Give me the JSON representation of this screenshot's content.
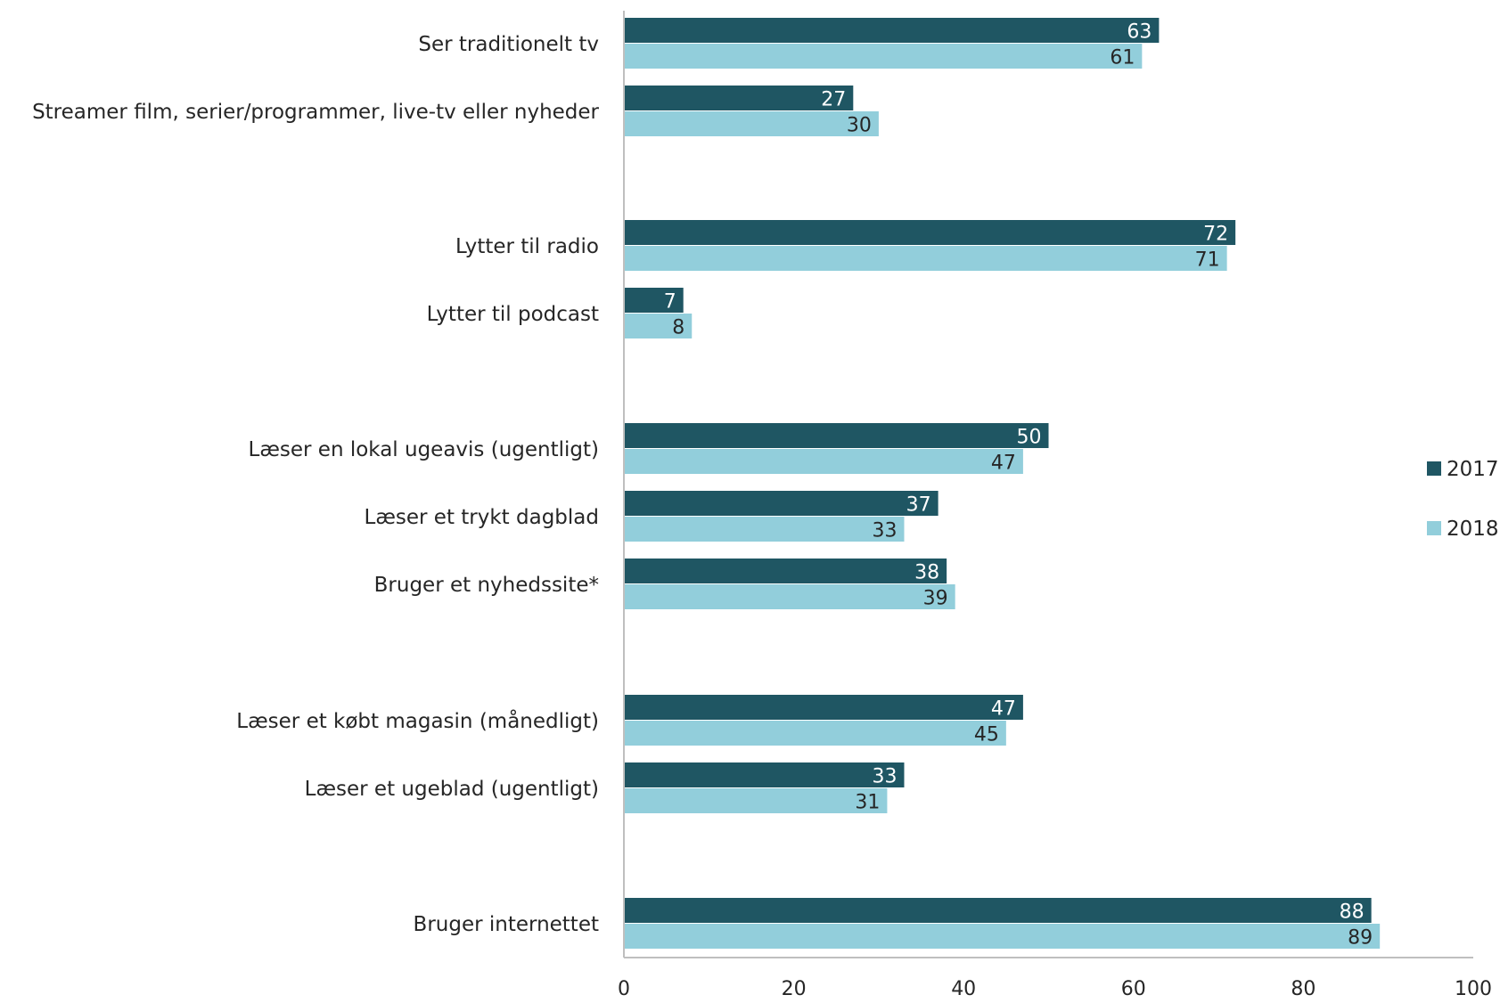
{
  "chart_data": {
    "type": "bar",
    "orientation": "horizontal",
    "title": "",
    "xlabel": "",
    "ylabel": "",
    "xlim": [
      0,
      100
    ],
    "x_ticks": [
      "0",
      "20",
      "40",
      "60",
      "80",
      "100"
    ],
    "grid": false,
    "legend_position": "right",
    "categories": [
      "Ser traditionelt tv",
      "Streamer film, serier/programmer, live-tv eller nyheder",
      "Lytter til radio",
      "Lytter til podcast",
      "Læser en lokal ugeavis (ugentligt)",
      "Læser et trykt dagblad",
      "Bruger et nyhedssite*",
      "Læser et købt magasin (månedligt)",
      "Læser et ugeblad (ugentligt)",
      "Bruger internettet"
    ],
    "series": [
      {
        "name": "2017",
        "color": "#1f5663",
        "label_color": "#ffffff",
        "values": [
          63,
          27,
          72,
          7,
          50,
          37,
          38,
          47,
          33,
          88
        ]
      },
      {
        "name": "2018",
        "color": "#92cedb",
        "label_color": "#262626",
        "values": [
          61,
          30,
          71,
          8,
          47,
          33,
          39,
          45,
          31,
          89
        ]
      }
    ]
  }
}
